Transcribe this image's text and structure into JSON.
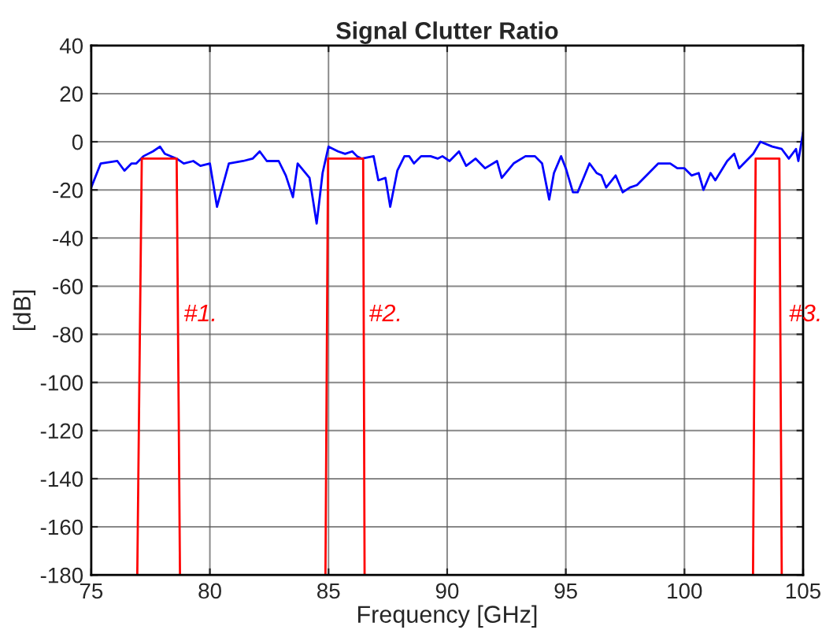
{
  "chart_data": {
    "type": "line",
    "title": "Signal Clutter Ratio",
    "xlabel": "Frequency [GHz]",
    "ylabel": "[dB]",
    "xlim": [
      75,
      105
    ],
    "xticks": [
      75,
      80,
      85,
      90,
      95,
      100,
      105
    ],
    "ylim": [
      -180,
      40
    ],
    "yticks": [
      -180,
      -160,
      -140,
      -120,
      -100,
      -80,
      -60,
      -40,
      -20,
      0,
      20,
      40
    ],
    "grid": true,
    "marker": "none",
    "line_style": "solid",
    "series": [
      {
        "color": "#0000ff",
        "x": [
          75.0,
          75.4,
          76.1,
          76.4,
          76.7,
          76.9,
          77.2,
          77.6,
          77.9,
          78.1,
          78.6,
          78.9,
          79.3,
          79.6,
          80.0,
          80.3,
          80.8,
          81.4,
          81.8,
          82.1,
          82.4,
          82.9,
          83.2,
          83.5,
          83.7,
          84.2,
          84.5,
          84.75,
          85.0,
          85.4,
          85.7,
          86.0,
          86.2,
          86.4,
          86.9,
          87.1,
          87.4,
          87.6,
          87.9,
          88.2,
          88.4,
          88.6,
          88.9,
          89.3,
          89.6,
          89.8,
          90.1,
          90.5,
          90.8,
          91.2,
          91.6,
          92.1,
          92.3,
          92.8,
          93.3,
          93.7,
          94.0,
          94.3,
          94.5,
          94.8,
          95.0,
          95.3,
          95.5,
          96.0,
          96.3,
          96.5,
          96.7,
          97.1,
          97.4,
          97.7,
          98.0,
          98.5,
          98.9,
          99.4,
          99.7,
          100.0,
          100.3,
          100.6,
          100.8,
          101.1,
          101.3,
          101.8,
          102.1,
          102.3,
          102.6,
          102.9,
          103.2,
          103.7,
          104.1,
          104.4,
          104.7,
          104.8,
          105.0
        ],
        "values": [
          -19,
          -9,
          -8,
          -12,
          -9,
          -9,
          -6,
          -4,
          -2,
          -5,
          -7,
          -9,
          -8,
          -10,
          -9,
          -27,
          -9,
          -8,
          -7,
          -4,
          -8,
          -8,
          -14,
          -23,
          -9,
          -15,
          -34,
          -13,
          -2,
          -4,
          -5,
          -4,
          -6,
          -7,
          -6,
          -16,
          -15,
          -27,
          -12,
          -6,
          -6,
          -9,
          -6,
          -6,
          -7,
          -6,
          -8,
          -4,
          -10,
          -7,
          -11,
          -8,
          -15,
          -9,
          -6,
          -6,
          -9,
          -24,
          -13,
          -6,
          -11,
          -21,
          -21,
          -9,
          -13,
          -14,
          -19,
          -14,
          -21,
          -19,
          -18,
          -13,
          -9,
          -9,
          -11,
          -11,
          -14,
          -13,
          -20,
          -13,
          -16,
          -8,
          -5,
          -11,
          -8,
          -5,
          0,
          -2,
          -3,
          -7,
          -3,
          -8,
          4
        ]
      },
      {
        "color": "#ff0000",
        "x": [
          76.94,
          77.13,
          78.6,
          78.74
        ],
        "values": [
          -180,
          -7,
          -7,
          -180
        ]
      },
      {
        "color": "#ff0000",
        "x": [
          84.87,
          84.98,
          86.46,
          86.52
        ],
        "values": [
          -180,
          -7,
          -7,
          -180
        ]
      },
      {
        "color": "#ff0000",
        "x": [
          102.89,
          103.0,
          104.0,
          104.1
        ],
        "values": [
          -180,
          -7,
          -7,
          -180
        ]
      }
    ],
    "annotations": [
      {
        "text": "#1.",
        "x": 78.9,
        "y": -72
      },
      {
        "text": "#2.",
        "x": 86.7,
        "y": -72
      },
      {
        "text": "#3.",
        "x": 104.4,
        "y": -72
      }
    ]
  }
}
